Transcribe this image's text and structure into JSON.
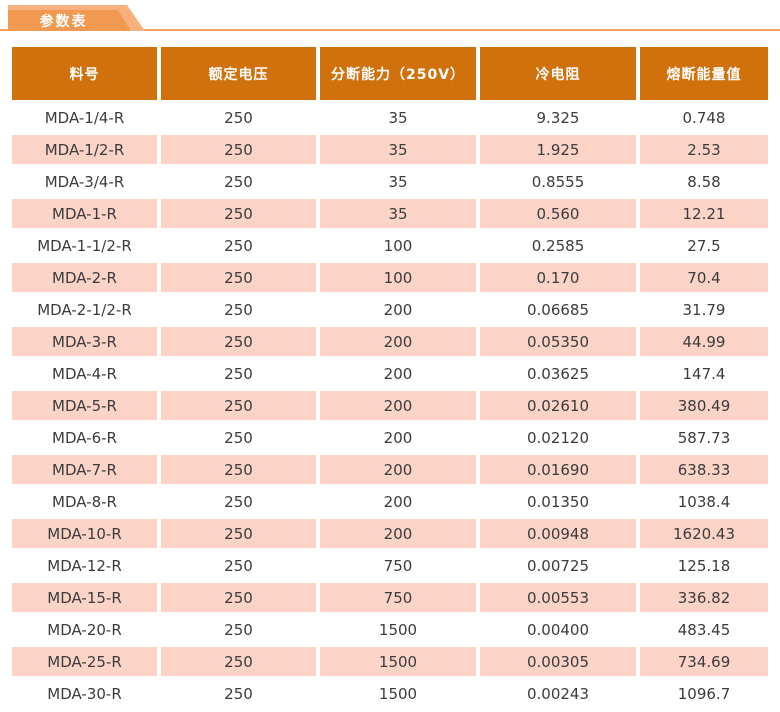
{
  "page": {
    "tab_label": "参数表"
  },
  "table": {
    "columns": [
      "料号",
      "额定电压",
      "分断能力（250V）",
      "冷电阻",
      "熔断能量值"
    ],
    "rows": [
      [
        "MDA-1/4-R",
        "250",
        "35",
        "9.325",
        "0.748"
      ],
      [
        "MDA-1/2-R",
        "250",
        "35",
        "1.925",
        "2.53"
      ],
      [
        "MDA-3/4-R",
        "250",
        "35",
        "0.8555",
        "8.58"
      ],
      [
        "MDA-1-R",
        "250",
        "35",
        "0.560",
        "12.21"
      ],
      [
        "MDA-1-1/2-R",
        "250",
        "100",
        "0.2585",
        "27.5"
      ],
      [
        "MDA-2-R",
        "250",
        "100",
        "0.170",
        "70.4"
      ],
      [
        "MDA-2-1/2-R",
        "250",
        "200",
        "0.06685",
        "31.79"
      ],
      [
        "MDA-3-R",
        "250",
        "200",
        "0.05350",
        "44.99"
      ],
      [
        "MDA-4-R",
        "250",
        "200",
        "0.03625",
        "147.4"
      ],
      [
        "MDA-5-R",
        "250",
        "200",
        "0.02610",
        "380.49"
      ],
      [
        "MDA-6-R",
        "250",
        "200",
        "0.02120",
        "587.73"
      ],
      [
        "MDA-7-R",
        "250",
        "200",
        "0.01690",
        "638.33"
      ],
      [
        "MDA-8-R",
        "250",
        "200",
        "0.01350",
        "1038.4"
      ],
      [
        "MDA-10-R",
        "250",
        "200",
        "0.00948",
        "1620.43"
      ],
      [
        "MDA-12-R",
        "250",
        "750",
        "0.00725",
        "125.18"
      ],
      [
        "MDA-15-R",
        "250",
        "750",
        "0.00553",
        "336.82"
      ],
      [
        "MDA-20-R",
        "250",
        "1500",
        "0.00400",
        "483.45"
      ],
      [
        "MDA-25-R",
        "250",
        "1500",
        "0.00305",
        "734.69"
      ],
      [
        "MDA-30-R",
        "250",
        "1500",
        "0.00243",
        "1096.7"
      ]
    ]
  },
  "colors": {
    "header_bg": "#d0710c",
    "row_alt_bg": "#fbd3c7",
    "tab_light": "#f8b17e",
    "tab_dark": "#f19950",
    "rule_line": "#f0a05f",
    "text_dark": "#3c3c3c"
  }
}
